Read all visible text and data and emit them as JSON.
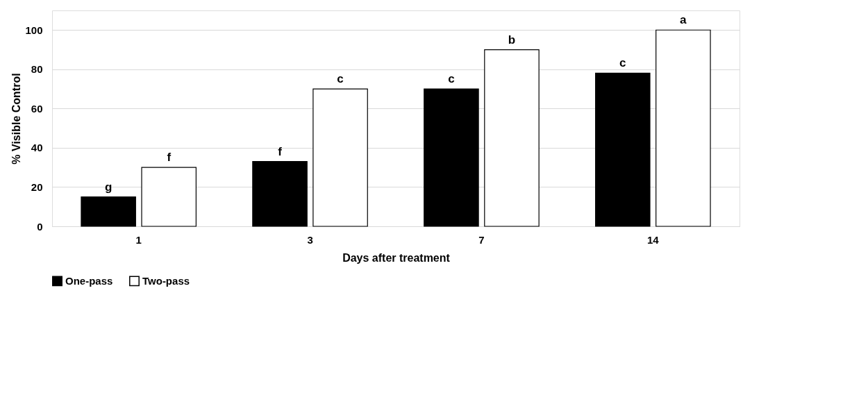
{
  "chart_data": {
    "type": "bar",
    "xlabel": "Days after treatment",
    "ylabel": "% Visible Control",
    "categories": [
      "1",
      "3",
      "7",
      "14"
    ],
    "series": [
      {
        "name": "One-pass",
        "color": "#000000",
        "values": [
          15,
          33,
          70,
          78
        ]
      },
      {
        "name": "Two-pass",
        "color": "#ffffff",
        "values": [
          30,
          70,
          90,
          100
        ]
      }
    ],
    "ylim": [
      0,
      110
    ],
    "yticks": [
      0,
      20,
      40,
      60,
      80,
      100
    ],
    "grid": "y",
    "legend": "bottom",
    "annotations": [
      {
        "text": "g",
        "x": "1",
        "y": 15
      },
      {
        "text": "f",
        "x": "1",
        "y": 30
      },
      {
        "text": "f",
        "x": "3",
        "y": 33
      },
      {
        "text": "c",
        "x": "3",
        "y": 70
      },
      {
        "text": "c",
        "x": "7",
        "y": 70
      },
      {
        "text": "b",
        "x": "7",
        "y": 90
      },
      {
        "text": "c",
        "x": "14",
        "y": 78
      },
      {
        "text": "a",
        "x": "14",
        "y": 100
      }
    ]
  }
}
